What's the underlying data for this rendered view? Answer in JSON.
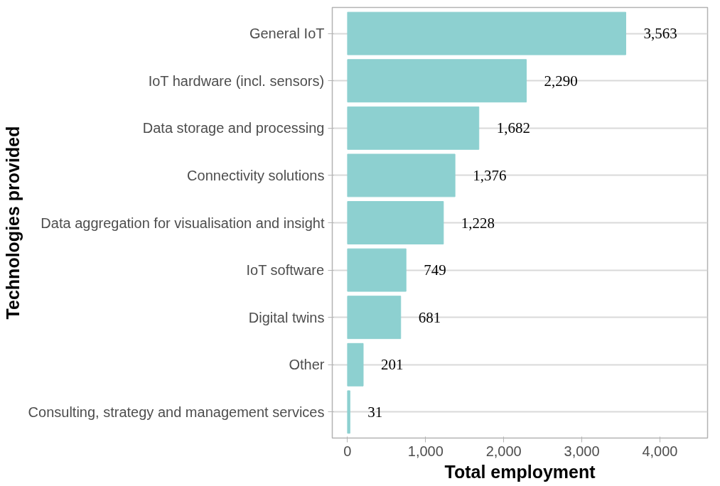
{
  "chart_data": {
    "type": "bar",
    "orientation": "horizontal",
    "xlabel": "Total employment",
    "ylabel": "Technologies provided",
    "categories": [
      "General IoT",
      "IoT hardware (incl. sensors)",
      "Data storage and processing",
      "Connectivity solutions",
      "Data aggregation for visualisation and insight",
      "IoT software",
      "Digital twins",
      "Other",
      "Consulting, strategy and management services"
    ],
    "values": [
      3563,
      2290,
      1682,
      1376,
      1228,
      749,
      681,
      201,
      31
    ],
    "value_labels": [
      "3,563",
      "2,290",
      "1,682",
      "1,376",
      "1,228",
      "749",
      "681",
      "201",
      "31"
    ],
    "color": "#8dd0d0",
    "xlim": [
      -195,
      4610
    ],
    "xticks": [
      0,
      {
        "value": 1000,
        "label": "1,000"
      },
      {
        "value": 2000,
        "label": "2,000"
      },
      {
        "value": 3000,
        "label": "3,000"
      },
      {
        "value": 4000,
        "label": "4,000"
      }
    ],
    "grid": "y"
  }
}
